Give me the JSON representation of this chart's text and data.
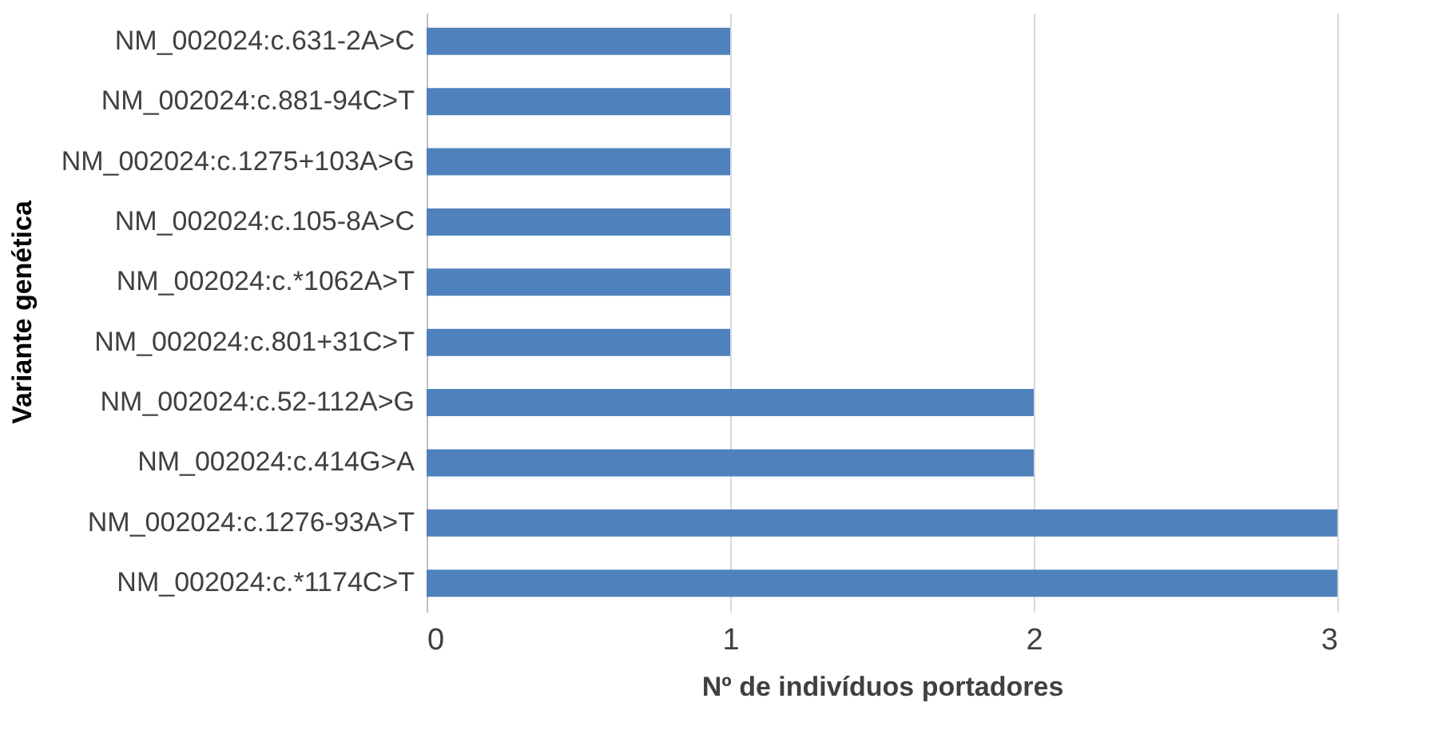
{
  "chart_data": {
    "type": "bar",
    "orientation": "horizontal",
    "xlabel": "Nº de indivíduos portadores",
    "ylabel": "Variante genética",
    "categories": [
      "NM_002024:c.631-2A>C",
      "NM_002024:c.881-94C>T",
      "NM_002024:c.1275+103A>G",
      "NM_002024:c.105-8A>C",
      "NM_002024:c.*1062A>T",
      "NM_002024:c.801+31C>T",
      "NM_002024:c.52-112A>G",
      "NM_002024:c.414G>A",
      "NM_002024:c.1276-93A>T",
      "NM_002024:c.*1174C>T"
    ],
    "values": [
      1,
      1,
      1,
      1,
      1,
      1,
      2,
      2,
      3,
      3
    ],
    "color": "#4f81bd",
    "xlim": [
      0,
      3
    ],
    "xticks": [
      0,
      1,
      2,
      3
    ],
    "grid": "x"
  }
}
